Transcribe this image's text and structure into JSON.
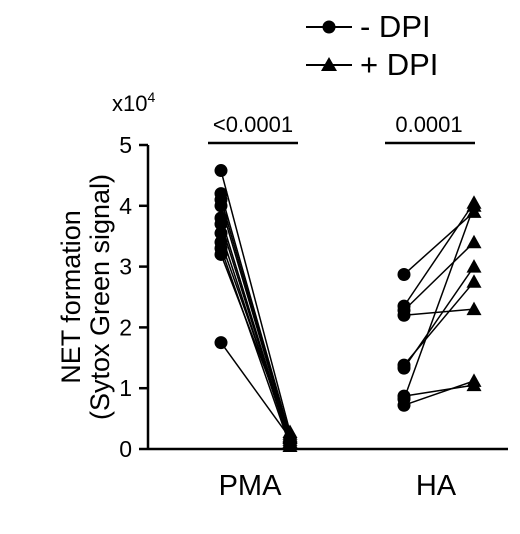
{
  "chart_data": {
    "type": "scatter",
    "subtype": "paired-before-after",
    "title": "",
    "ylabel_line1": "NET formation",
    "ylabel_line2": "(Sytox Green signal)",
    "y_multiplier_base": "x10",
    "y_multiplier_exp": "4",
    "ylim": [
      0,
      5
    ],
    "yticks": [
      "0",
      "1",
      "2",
      "3",
      "4",
      "5"
    ],
    "categories": [
      "PMA",
      "HA"
    ],
    "legend": {
      "placement": "top-right",
      "entries": [
        {
          "label": "- DPI",
          "marker": "circle"
        },
        {
          "label": "+ DPI",
          "marker": "triangle"
        }
      ]
    },
    "p_values": [
      {
        "group": "PMA",
        "label": "<0.0001"
      },
      {
        "group": "HA",
        "label": "0.0001"
      }
    ],
    "series": [
      {
        "group": "PMA",
        "pairs": [
          [
            4.58,
            0.28
          ],
          [
            4.2,
            0.22
          ],
          [
            4.1,
            0.18
          ],
          [
            4.0,
            0.15
          ],
          [
            3.8,
            0.12
          ],
          [
            3.7,
            0.1
          ],
          [
            3.55,
            0.08
          ],
          [
            3.4,
            0.2
          ],
          [
            3.3,
            0.05
          ],
          [
            3.2,
            0.25
          ],
          [
            1.75,
            0.18
          ]
        ]
      },
      {
        "group": "HA",
        "pairs": [
          [
            2.87,
            3.9
          ],
          [
            2.35,
            4.05
          ],
          [
            2.28,
            3.4
          ],
          [
            2.2,
            2.3
          ],
          [
            1.38,
            2.75
          ],
          [
            1.33,
            3.0
          ],
          [
            0.87,
            1.05
          ],
          [
            0.82,
            4.0
          ],
          [
            0.72,
            1.12
          ]
        ]
      }
    ]
  }
}
